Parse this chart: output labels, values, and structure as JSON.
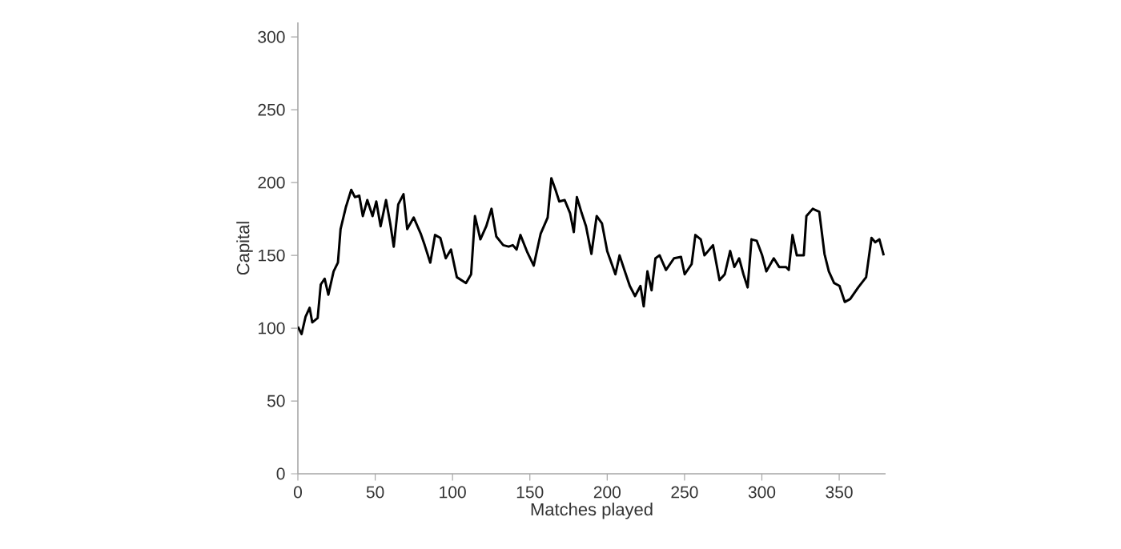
{
  "chart_data": {
    "type": "line",
    "xlabel": "Matches played",
    "ylabel": "Capital",
    "xlim": [
      0,
      380
    ],
    "ylim": [
      0,
      310
    ],
    "xticks": [
      0,
      50,
      100,
      150,
      200,
      250,
      300,
      350
    ],
    "yticks": [
      0,
      50,
      100,
      150,
      200,
      250,
      300
    ],
    "grid": false,
    "marker": "none",
    "line_style": "solid",
    "series": [
      {
        "color": "#000000",
        "x": [
          0,
          2.4,
          5,
          7.6,
          9.3,
          12.8,
          14.8,
          17.3,
          19.7,
          23.1,
          25.9,
          27.6,
          31,
          34.5,
          36.9,
          39.7,
          42,
          44.9,
          48.3,
          50.7,
          53.5,
          57,
          59.7,
          62,
          64.9,
          68.3,
          70.7,
          74.9,
          79.4,
          82,
          85.6,
          88.7,
          92.1,
          95.6,
          99,
          102.8,
          108.7,
          112,
          114.5,
          118,
          121.8,
          125.2,
          128.3,
          132.8,
          136.3,
          139,
          141.4,
          143.9,
          148.4,
          152.5,
          157,
          161.5,
          163.9,
          166.6,
          169,
          172.5,
          176,
          178.4,
          180.4,
          183.5,
          186.3,
          189.8,
          193.2,
          196.6,
          200,
          205.3,
          208,
          211.1,
          214.6,
          218,
          221.5,
          223.6,
          226,
          228.7,
          231.2,
          233.9,
          238,
          243.2,
          247.7,
          250.1,
          254.6,
          257,
          260.5,
          262.9,
          268.4,
          272.6,
          276,
          279.5,
          282.2,
          285.3,
          288.1,
          290.8,
          293.3,
          296.7,
          300.2,
          302.9,
          307.7,
          311.2,
          315.7,
          317.4,
          319.8,
          322.6,
          327.1,
          328.8,
          332.9,
          337.1,
          340.5,
          343.3,
          346.7,
          350.2,
          353.6,
          357.1,
          362.3,
          367.4,
          370.9,
          373.3,
          376,
          378.8
        ],
        "values": [
          101,
          96,
          108,
          114,
          104,
          107,
          130,
          134,
          123,
          139,
          145,
          168,
          183,
          195,
          190,
          191,
          177,
          188,
          177,
          187,
          170,
          188,
          172,
          156,
          185,
          192,
          168,
          176,
          165,
          157,
          145,
          164,
          162,
          148,
          154,
          135,
          131,
          137,
          177,
          161,
          170,
          182,
          163,
          157,
          156,
          157,
          154,
          164,
          152,
          143,
          165,
          176,
          203,
          195,
          187,
          188,
          179,
          166,
          190,
          179,
          170,
          151,
          177,
          172,
          153,
          137,
          150,
          140,
          129,
          122,
          129,
          115,
          139,
          126,
          148,
          150,
          140,
          148,
          149,
          137,
          144,
          164,
          161,
          150,
          157,
          133,
          137,
          153,
          142,
          148,
          137,
          128,
          161,
          160,
          150,
          139,
          148,
          142,
          142,
          140,
          164,
          150,
          150,
          177,
          182,
          180,
          151,
          139,
          131,
          129,
          118,
          120,
          128,
          135,
          162,
          159,
          161,
          150
        ]
      }
    ]
  }
}
